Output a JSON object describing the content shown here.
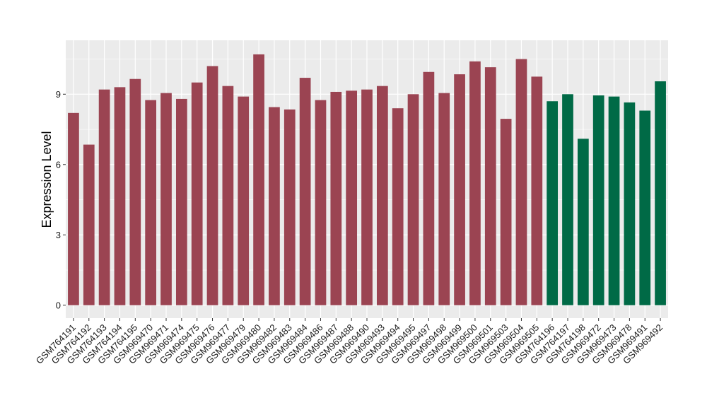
{
  "chart_data": {
    "type": "bar",
    "title": "",
    "xlabel": "",
    "ylabel": "Expression Level",
    "ylim": [
      -0.55,
      11.3
    ],
    "yticks": [
      0,
      3,
      6,
      9
    ],
    "grid": true,
    "legend": "none",
    "colors": {
      "group_a": "#9b4452",
      "group_b": "#006a46",
      "panel": "#ebebeb",
      "grid": "#ffffff"
    },
    "categories": [
      "GSM764191",
      "GSM764192",
      "GSM764193",
      "GSM764194",
      "GSM764195",
      "GSM969470",
      "GSM969471",
      "GSM969474",
      "GSM969475",
      "GSM969476",
      "GSM969477",
      "GSM969479",
      "GSM969480",
      "GSM969482",
      "GSM969483",
      "GSM969484",
      "GSM969486",
      "GSM969487",
      "GSM969488",
      "GSM969490",
      "GSM969493",
      "GSM969494",
      "GSM969495",
      "GSM969497",
      "GSM969498",
      "GSM969499",
      "GSM969500",
      "GSM969501",
      "GSM969503",
      "GSM969504",
      "GSM969505",
      "GSM764196",
      "GSM764197",
      "GSM764198",
      "GSM969472",
      "GSM969473",
      "GSM969478",
      "GSM969491",
      "GSM969492"
    ],
    "values": [
      8.2,
      6.85,
      9.2,
      9.3,
      9.65,
      8.75,
      9.05,
      8.8,
      9.5,
      10.2,
      9.35,
      8.9,
      10.7,
      8.45,
      8.35,
      9.7,
      8.75,
      9.1,
      9.15,
      9.2,
      9.35,
      8.4,
      9.0,
      9.95,
      9.05,
      9.85,
      10.4,
      10.15,
      7.95,
      10.5,
      9.75,
      8.7,
      9.0,
      7.1,
      8.95,
      8.9,
      8.65,
      8.3,
      9.55
    ],
    "groups": [
      "a",
      "a",
      "a",
      "a",
      "a",
      "a",
      "a",
      "a",
      "a",
      "a",
      "a",
      "a",
      "a",
      "a",
      "a",
      "a",
      "a",
      "a",
      "a",
      "a",
      "a",
      "a",
      "a",
      "a",
      "a",
      "a",
      "a",
      "a",
      "a",
      "a",
      "a",
      "b",
      "b",
      "b",
      "b",
      "b",
      "b",
      "b",
      "b"
    ]
  }
}
